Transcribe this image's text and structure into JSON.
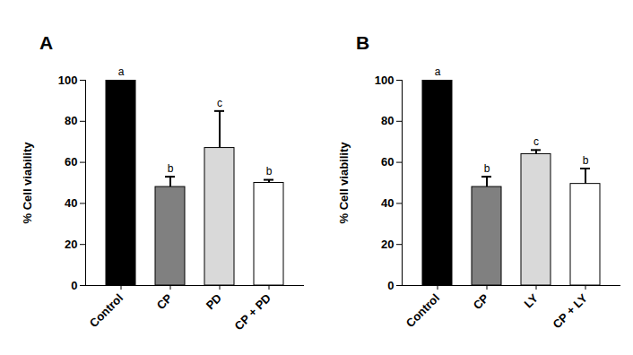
{
  "chart_data": [
    {
      "type": "bar",
      "title": "A",
      "y_label": "% Cell viability",
      "categories": [
        "Control",
        "CP",
        "PD",
        "CP + PD"
      ],
      "values": [
        100,
        48,
        67,
        50
      ],
      "errors": [
        null,
        5,
        18,
        1.5
      ],
      "annotations": [
        "a",
        "b",
        "c",
        "b"
      ],
      "colors": [
        "#000000",
        "#808080",
        "#d9d9d9",
        "#ffffff"
      ],
      "ylim": [
        0,
        100
      ],
      "yticks": [
        0,
        20,
        40,
        60,
        80,
        100
      ],
      "grid": false
    },
    {
      "type": "bar",
      "title": "B",
      "y_label": "% Cell viability",
      "categories": [
        "Control",
        "CP",
        "LY",
        "CP + LY"
      ],
      "values": [
        100,
        48,
        64,
        49.5
      ],
      "errors": [
        null,
        5,
        2,
        7.5
      ],
      "annotations": [
        "a",
        "b",
        "c",
        "b"
      ],
      "colors": [
        "#000000",
        "#808080",
        "#d9d9d9",
        "#ffffff"
      ],
      "ylim": [
        0,
        100
      ],
      "yticks": [
        0,
        20,
        40,
        60,
        80,
        100
      ],
      "grid": false
    }
  ]
}
